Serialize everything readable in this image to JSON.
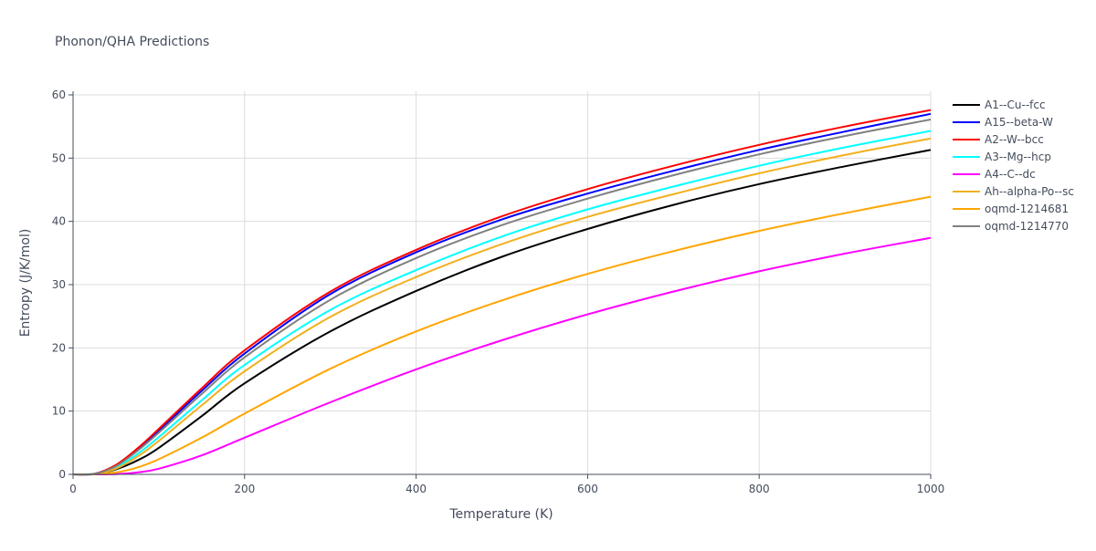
{
  "chart_data": {
    "type": "line",
    "title": "Phonon/QHA Predictions",
    "xlabel": "Temperature (K)",
    "ylabel": "Entropy (J/K/mol)",
    "xlim": [
      0,
      1000
    ],
    "ylim": [
      0,
      60
    ],
    "x_ticks": [
      0,
      200,
      400,
      600,
      800,
      1000
    ],
    "y_ticks": [
      0,
      10,
      20,
      30,
      40,
      50,
      60
    ],
    "grid": true,
    "legend_position": "right",
    "x": [
      0,
      25,
      50,
      75,
      100,
      150,
      200,
      300,
      400,
      500,
      600,
      700,
      800,
      900,
      1000
    ],
    "series": [
      {
        "name": "A1--Cu--fcc",
        "color": "#000000",
        "values": [
          0,
          0.05,
          0.8,
          2.2,
          4.2,
          9.2,
          14.4,
          22.6,
          29.0,
          34.4,
          38.8,
          42.6,
          45.9,
          48.7,
          51.3
        ]
      },
      {
        "name": "A15--beta-W",
        "color": "#0000ff",
        "values": [
          0,
          0.1,
          1.4,
          3.9,
          6.9,
          13.2,
          19.1,
          28.5,
          35.1,
          40.3,
          44.4,
          48.0,
          51.3,
          54.2,
          57.0
        ]
      },
      {
        "name": "A2--W--bcc",
        "color": "#ff0000",
        "values": [
          0,
          0.1,
          1.5,
          4.1,
          7.2,
          13.6,
          19.6,
          28.9,
          35.5,
          40.8,
          45.1,
          48.8,
          52.1,
          55.0,
          57.6
        ]
      },
      {
        "name": "A3--Mg--hcp",
        "color": "#00ffff",
        "values": [
          0,
          0.08,
          1.1,
          3.2,
          5.9,
          11.7,
          17.3,
          26.0,
          32.3,
          37.6,
          41.9,
          45.5,
          48.8,
          51.7,
          54.3
        ]
      },
      {
        "name": "A4--C--dc",
        "color": "#ff00ff",
        "values": [
          0,
          0,
          0.05,
          0.3,
          0.9,
          3.0,
          5.8,
          11.4,
          16.6,
          21.2,
          25.3,
          28.9,
          32.1,
          34.9,
          37.4
        ]
      },
      {
        "name": "Ah--alpha-Po--sc",
        "color": "#f2b01e",
        "values": [
          0,
          0.07,
          0.9,
          2.8,
          5.3,
          10.9,
          16.3,
          24.9,
          31.2,
          36.4,
          40.7,
          44.3,
          47.6,
          50.5,
          53.1
        ]
      },
      {
        "name": "oqmd-1214681",
        "color": "#ffa500",
        "values": [
          0,
          0.02,
          0.3,
          1.1,
          2.4,
          5.8,
          9.6,
          16.7,
          22.6,
          27.5,
          31.7,
          35.3,
          38.5,
          41.3,
          43.9
        ]
      },
      {
        "name": "oqmd-1214770",
        "color": "#808080",
        "values": [
          0,
          0.09,
          1.3,
          3.7,
          6.6,
          12.7,
          18.5,
          27.6,
          34.2,
          39.4,
          43.6,
          47.3,
          50.6,
          53.5,
          56.1
        ]
      }
    ]
  }
}
